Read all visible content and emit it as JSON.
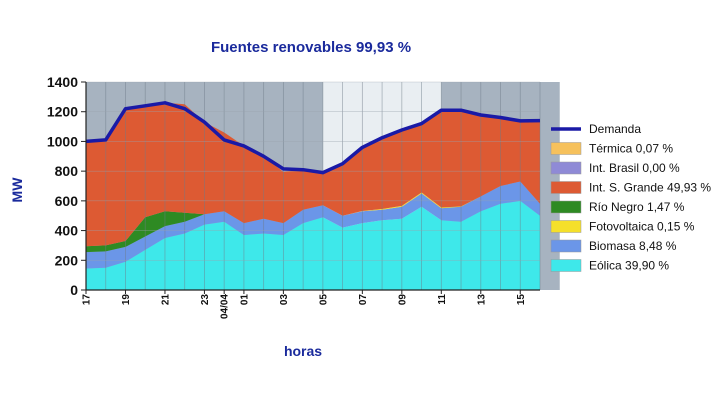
{
  "chart_data": {
    "type": "area",
    "title": "Fuentes renovables 99,93 %",
    "xlabel": "horas",
    "ylabel": "MW",
    "ylim": [
      0,
      1400
    ],
    "yticks": [
      0,
      200,
      400,
      600,
      800,
      1000,
      1200,
      1400
    ],
    "x_tick_labels": [
      "17",
      "19",
      "21",
      "23",
      "04/04",
      "01",
      "03",
      "05",
      "07",
      "09",
      "11",
      "13",
      "15"
    ],
    "x_tick_index": [
      0,
      2,
      4,
      6,
      7,
      8,
      10,
      12,
      14,
      16,
      18,
      20,
      22
    ],
    "x_points": 24,
    "night_shading": [
      [
        0,
        7
      ],
      [
        7,
        12
      ],
      [
        18,
        24
      ]
    ],
    "legend_position": "right",
    "series": [
      {
        "name": "Eólica 39,90 %",
        "color": "#3ee8ea",
        "values": [
          145,
          150,
          190,
          270,
          350,
          380,
          440,
          460,
          370,
          380,
          370,
          450,
          490,
          420,
          450,
          470,
          480,
          560,
          470,
          460,
          530,
          580,
          600,
          500
        ]
      },
      {
        "name": "Biomasa 8,48 %",
        "color": "#6b96e8",
        "values": [
          110,
          110,
          100,
          90,
          80,
          80,
          70,
          70,
          80,
          100,
          80,
          90,
          80,
          80,
          80,
          70,
          80,
          90,
          80,
          100,
          100,
          120,
          130,
          80
        ]
      },
      {
        "name": "Fotovoltaica 0,15 %",
        "color": "#f5e02a",
        "values": [
          0,
          0,
          0,
          0,
          0,
          0,
          0,
          0,
          0,
          0,
          0,
          0,
          0,
          0,
          2,
          5,
          6,
          6,
          5,
          3,
          0,
          0,
          0,
          0
        ]
      },
      {
        "name": "Río Negro 1,47 %",
        "color": "#2e8a23",
        "values": [
          40,
          40,
          40,
          130,
          100,
          60,
          0,
          0,
          0,
          0,
          0,
          0,
          0,
          0,
          0,
          0,
          0,
          0,
          0,
          0,
          0,
          0,
          0,
          0
        ]
      },
      {
        "name": "Int. S. Grande 49,93 %",
        "color": "#dd5a33",
        "values": [
          705,
          710,
          890,
          740,
          730,
          730,
          620,
          530,
          520,
          420,
          345,
          270,
          220,
          350,
          430,
          470,
          517,
          464,
          660,
          650,
          548,
          461,
          408,
          560
        ]
      },
      {
        "name": "Int. Brasil 0,00 %",
        "color": "#8f8ad6",
        "values": [
          0,
          0,
          0,
          0,
          0,
          0,
          0,
          0,
          0,
          0,
          0,
          0,
          0,
          0,
          0,
          0,
          0,
          0,
          0,
          0,
          0,
          0,
          0,
          0
        ]
      },
      {
        "name": "Térmica 0,07 %",
        "color": "#f6c15c",
        "values": [
          0,
          0,
          0,
          0,
          0,
          0,
          0,
          0,
          0,
          0,
          0,
          0,
          0,
          0,
          0,
          0,
          0,
          0,
          0,
          0,
          0,
          0,
          0,
          0
        ]
      }
    ],
    "demand": {
      "name": "Demanda",
      "color": "#1a1aa6",
      "values": [
        1000,
        1010,
        1220,
        1240,
        1260,
        1220,
        1130,
        1010,
        970,
        900,
        815,
        810,
        790,
        850,
        960,
        1025,
        1077,
        1120,
        1210,
        1210,
        1178,
        1161,
        1138,
        1140
      ]
    },
    "legend_order": [
      "Demanda",
      "Térmica 0,07 %",
      "Int. Brasil 0,00 %",
      "Int. S. Grande 49,93 %",
      "Río Negro 1,47 %",
      "Fotovoltaica 0,15 %",
      "Biomasa 8,48 %",
      "Eólica 39,90 %"
    ]
  }
}
